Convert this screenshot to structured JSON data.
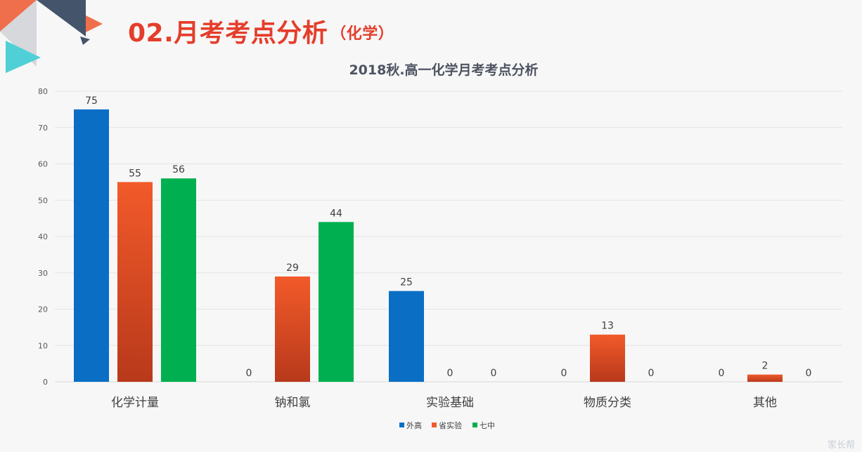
{
  "slide": {
    "number": "02.",
    "title": "月考考点分析",
    "subtitle": "（化学）"
  },
  "watermark": "家长帮",
  "colors": {
    "accent_red": "#e53d2b",
    "series_blue": "#0a6ec5",
    "series_orange_top": "#f25a2a",
    "series_orange_bottom": "#b8391b",
    "series_green": "#00b050",
    "deco_navy": "#44546a",
    "deco_orange": "#ef6f4c",
    "deco_cyan": "#4fd0d6"
  },
  "chart_data": {
    "type": "bar",
    "title": "2018秋.高一化学月考考点分析",
    "xlabel": "",
    "ylabel": "",
    "categories": [
      "化学计量",
      "钠和氯",
      "实验基础",
      "物质分类",
      "其他"
    ],
    "series": [
      {
        "name": "外高",
        "values": [
          75,
          0,
          25,
          0,
          0
        ]
      },
      {
        "name": "省实验",
        "values": [
          55,
          29,
          0,
          13,
          2
        ]
      },
      {
        "name": "七中",
        "values": [
          56,
          44,
          0,
          0,
          0
        ]
      }
    ],
    "ylim": [
      0,
      80
    ],
    "yticks": [
      0,
      10,
      20,
      30,
      40,
      50,
      60,
      70,
      80
    ],
    "grid": true,
    "legend": "bottom",
    "data_labels": true
  }
}
